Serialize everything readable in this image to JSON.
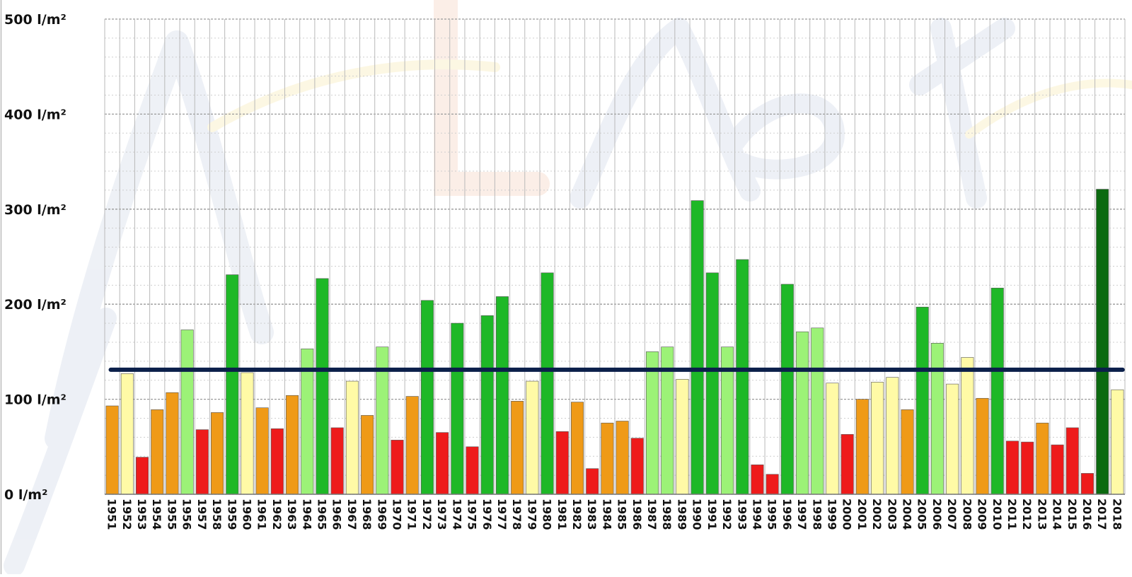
{
  "chart_data": {
    "type": "bar",
    "title": "",
    "xlabel": "",
    "ylabel": "",
    "ylim": [
      0,
      500
    ],
    "grid": true,
    "y_ticks": [
      "0 l/m²",
      "100 l/m²",
      "200 l/m²",
      "300 l/m²",
      "400 l/m²",
      "500 l/m²"
    ],
    "y_tick_values": [
      0,
      100,
      200,
      300,
      400,
      500
    ],
    "reference_line": {
      "value": 131,
      "color": "#0b1f4a"
    },
    "colors": {
      "very_dry": "#ee1b1b",
      "dry": "#ef9a17",
      "normal": "#fffaa6",
      "wet": "#9cf277",
      "very_wet": "#1eb827",
      "record": "#0b6a10"
    },
    "categories": [
      "1951",
      "1952",
      "1953",
      "1954",
      "1955",
      "1956",
      "1957",
      "1958",
      "1959",
      "1960",
      "1961",
      "1962",
      "1963",
      "1964",
      "1965",
      "1966",
      "1967",
      "1968",
      "1969",
      "1970",
      "1971",
      "1972",
      "1973",
      "1974",
      "1975",
      "1976",
      "1977",
      "1978",
      "1979",
      "1980",
      "1981",
      "1982",
      "1983",
      "1984",
      "1985",
      "1986",
      "1987",
      "1988",
      "1989",
      "1990",
      "1991",
      "1992",
      "1993",
      "1994",
      "1995",
      "1996",
      "1997",
      "1998",
      "1999",
      "2000",
      "2001",
      "2002",
      "2003",
      "2004",
      "2005",
      "2006",
      "2007",
      "2008",
      "2009",
      "2010",
      "2011",
      "2012",
      "2013",
      "2014",
      "2015",
      "2016",
      "2017",
      "2018"
    ],
    "values": [
      93,
      127,
      39,
      89,
      107,
      173,
      68,
      86,
      231,
      128,
      91,
      69,
      104,
      153,
      227,
      70,
      119,
      83,
      155,
      57,
      103,
      204,
      65,
      180,
      50,
      188,
      208,
      98,
      119,
      233,
      66,
      97,
      27,
      75,
      77,
      59,
      150,
      155,
      121,
      309,
      233,
      155,
      247,
      31,
      21,
      221,
      171,
      175,
      117,
      63,
      100,
      118,
      123,
      89,
      197,
      159,
      116,
      144,
      101,
      217,
      56,
      55,
      75,
      52,
      70,
      22,
      321,
      110
    ],
    "bar_colors": [
      "dry",
      "normal",
      "very_dry",
      "dry",
      "dry",
      "wet",
      "very_dry",
      "dry",
      "very_wet",
      "normal",
      "dry",
      "very_dry",
      "dry",
      "wet",
      "very_wet",
      "very_dry",
      "normal",
      "dry",
      "wet",
      "very_dry",
      "dry",
      "very_wet",
      "very_dry",
      "very_wet",
      "very_dry",
      "very_wet",
      "very_wet",
      "dry",
      "normal",
      "very_wet",
      "very_dry",
      "dry",
      "very_dry",
      "dry",
      "dry",
      "very_dry",
      "wet",
      "wet",
      "normal",
      "very_wet",
      "very_wet",
      "wet",
      "very_wet",
      "very_dry",
      "very_dry",
      "very_wet",
      "wet",
      "wet",
      "normal",
      "very_dry",
      "dry",
      "normal",
      "normal",
      "dry",
      "very_wet",
      "wet",
      "normal",
      "normal",
      "dry",
      "very_wet",
      "very_dry",
      "very_dry",
      "dry",
      "very_dry",
      "very_dry",
      "very_dry",
      "record",
      "normal"
    ]
  }
}
